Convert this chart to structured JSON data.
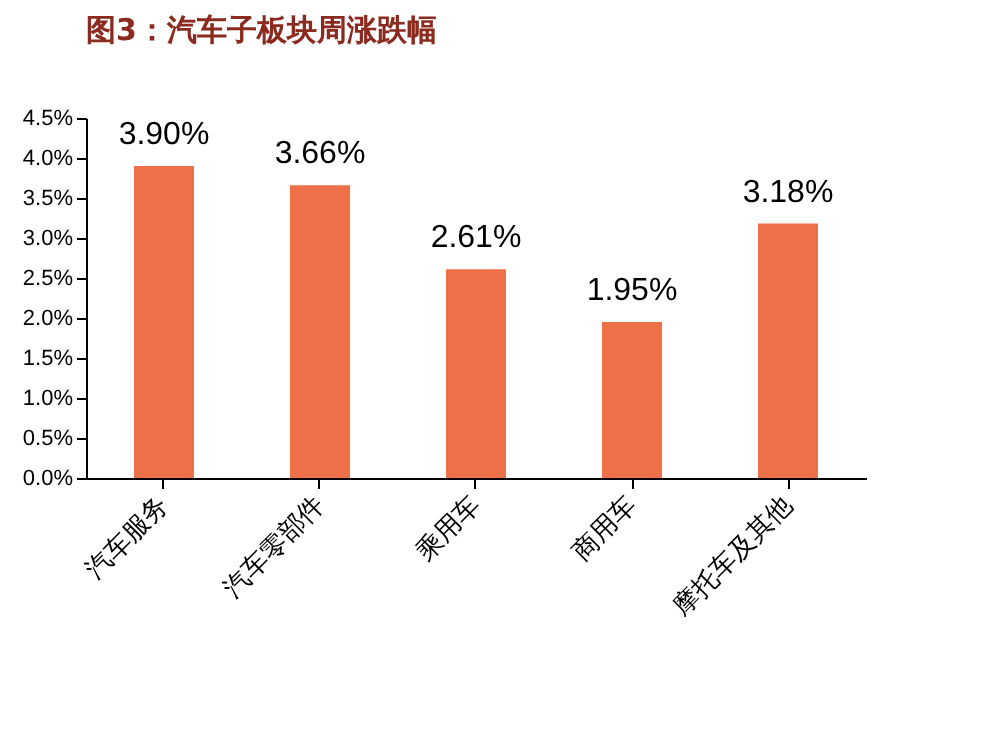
{
  "chart_data": {
    "type": "bar",
    "title": "图3：汽车子板块周涨跌幅",
    "categories": [
      "汽车服务",
      "汽车零部件",
      "乘用车",
      "商用车",
      "摩托车及其他"
    ],
    "values": [
      3.9,
      3.66,
      2.61,
      1.95,
      3.18
    ],
    "value_labels": [
      "3.90%",
      "3.66%",
      "2.61%",
      "1.95%",
      "3.18%"
    ],
    "color": "#ed7049",
    "ylim": [
      0,
      4.5
    ],
    "yticks": [
      {
        "value": 0,
        "label": "0.0%"
      },
      {
        "value": 0.5,
        "label": "0.5%"
      },
      {
        "value": 1,
        "label": "1.0%"
      },
      {
        "value": 1.5,
        "label": "1.5%"
      },
      {
        "value": 2,
        "label": "2.0%"
      },
      {
        "value": 2.5,
        "label": "2.5%"
      },
      {
        "value": 3,
        "label": "3.0%"
      },
      {
        "value": 3.5,
        "label": "3.5%"
      },
      {
        "value": 4,
        "label": "4.0%"
      },
      {
        "value": 4.5,
        "label": "4.5%"
      }
    ],
    "grid": false
  }
}
